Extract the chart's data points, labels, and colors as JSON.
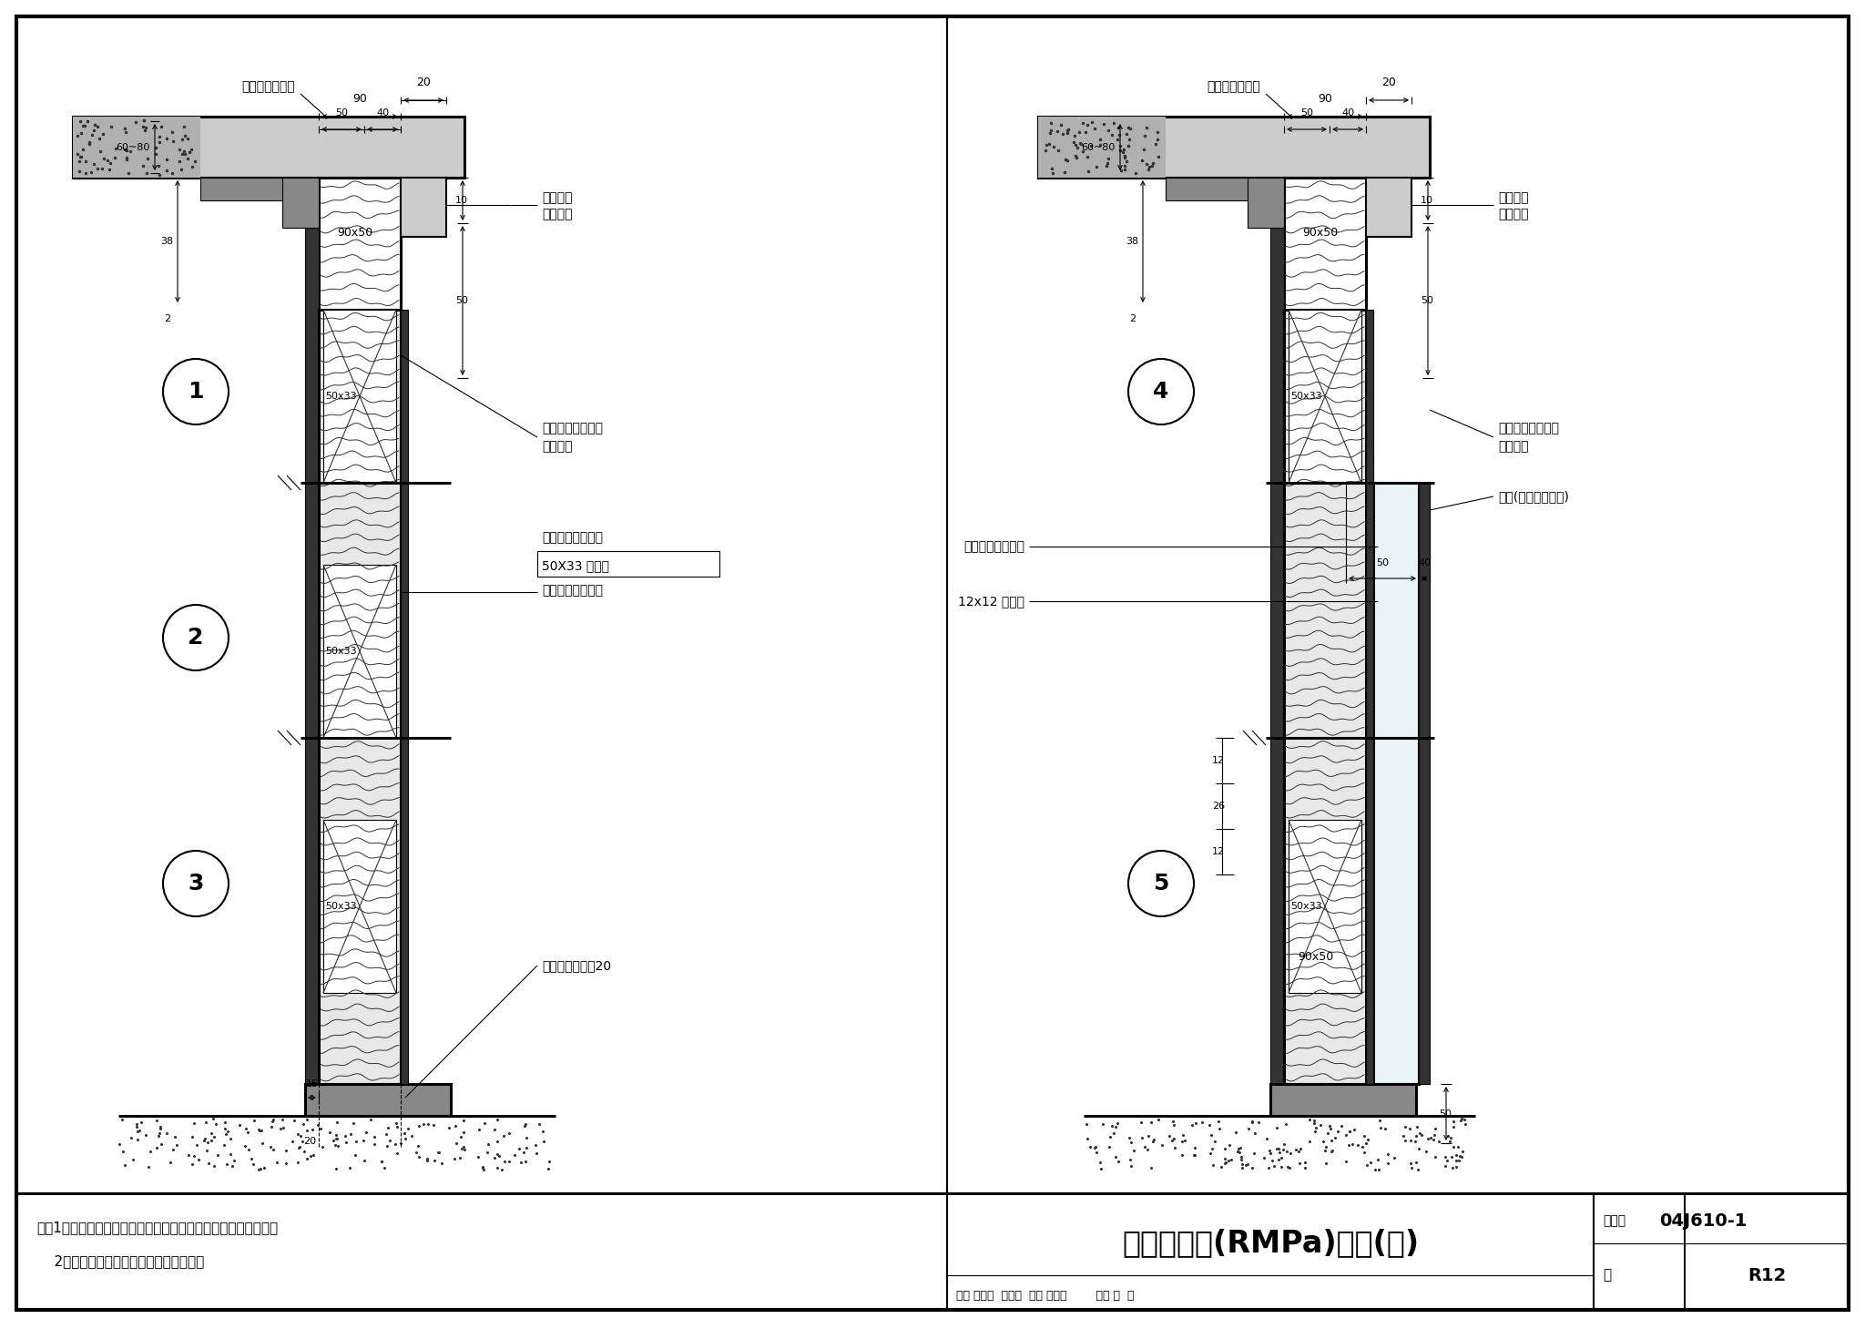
{
  "title": "木质平开门(RMPa)详图(二)",
  "fig_number": "04J610-1",
  "page": "R12",
  "notes_line1": "注：1、室内防射线墙面与门槛连接处的铅板应对接，不留缝隙。",
  "notes_line2": "    2、木贴脸线型大小也可由项目设计定。",
  "label_mutianlian": "木贴脸下压铅板",
  "label_fanghu": "防护墙体",
  "label_xiangmu": "项目设计",
  "label_danmian1": "单面木质铝复合板",
  "label_fanghu_frame": "防护门框",
  "label_danmian2": "单面木质铝复合板",
  "label_50x33": "50X33 木龙骨",
  "label_danmian3": "单面木质铝复合板",
  "label_door_floor": "门框埋入楼地面20",
  "label_shuangmian": "双面木质铝复合板",
  "label_boli": "玻璃(厚度项目确定)",
  "label_12x12": "12x12 木压条",
  "dim_20": "20",
  "dim_90": "90",
  "dim_50": "50",
  "dim_40": "40",
  "dim_10": "10",
  "dim_50b": "50",
  "dim_6080": "60~80",
  "dim_38": "38",
  "dim_2": "2",
  "dim_90x50": "90x50",
  "dim_50x33": "50x33",
  "dim_15": "15",
  "dim_20b": "20",
  "dim_12": "12",
  "dim_26": "26",
  "author_row": "审核 王祖光  主力光  校对 李正刚        设计 洪  森",
  "bg": "#ffffff"
}
